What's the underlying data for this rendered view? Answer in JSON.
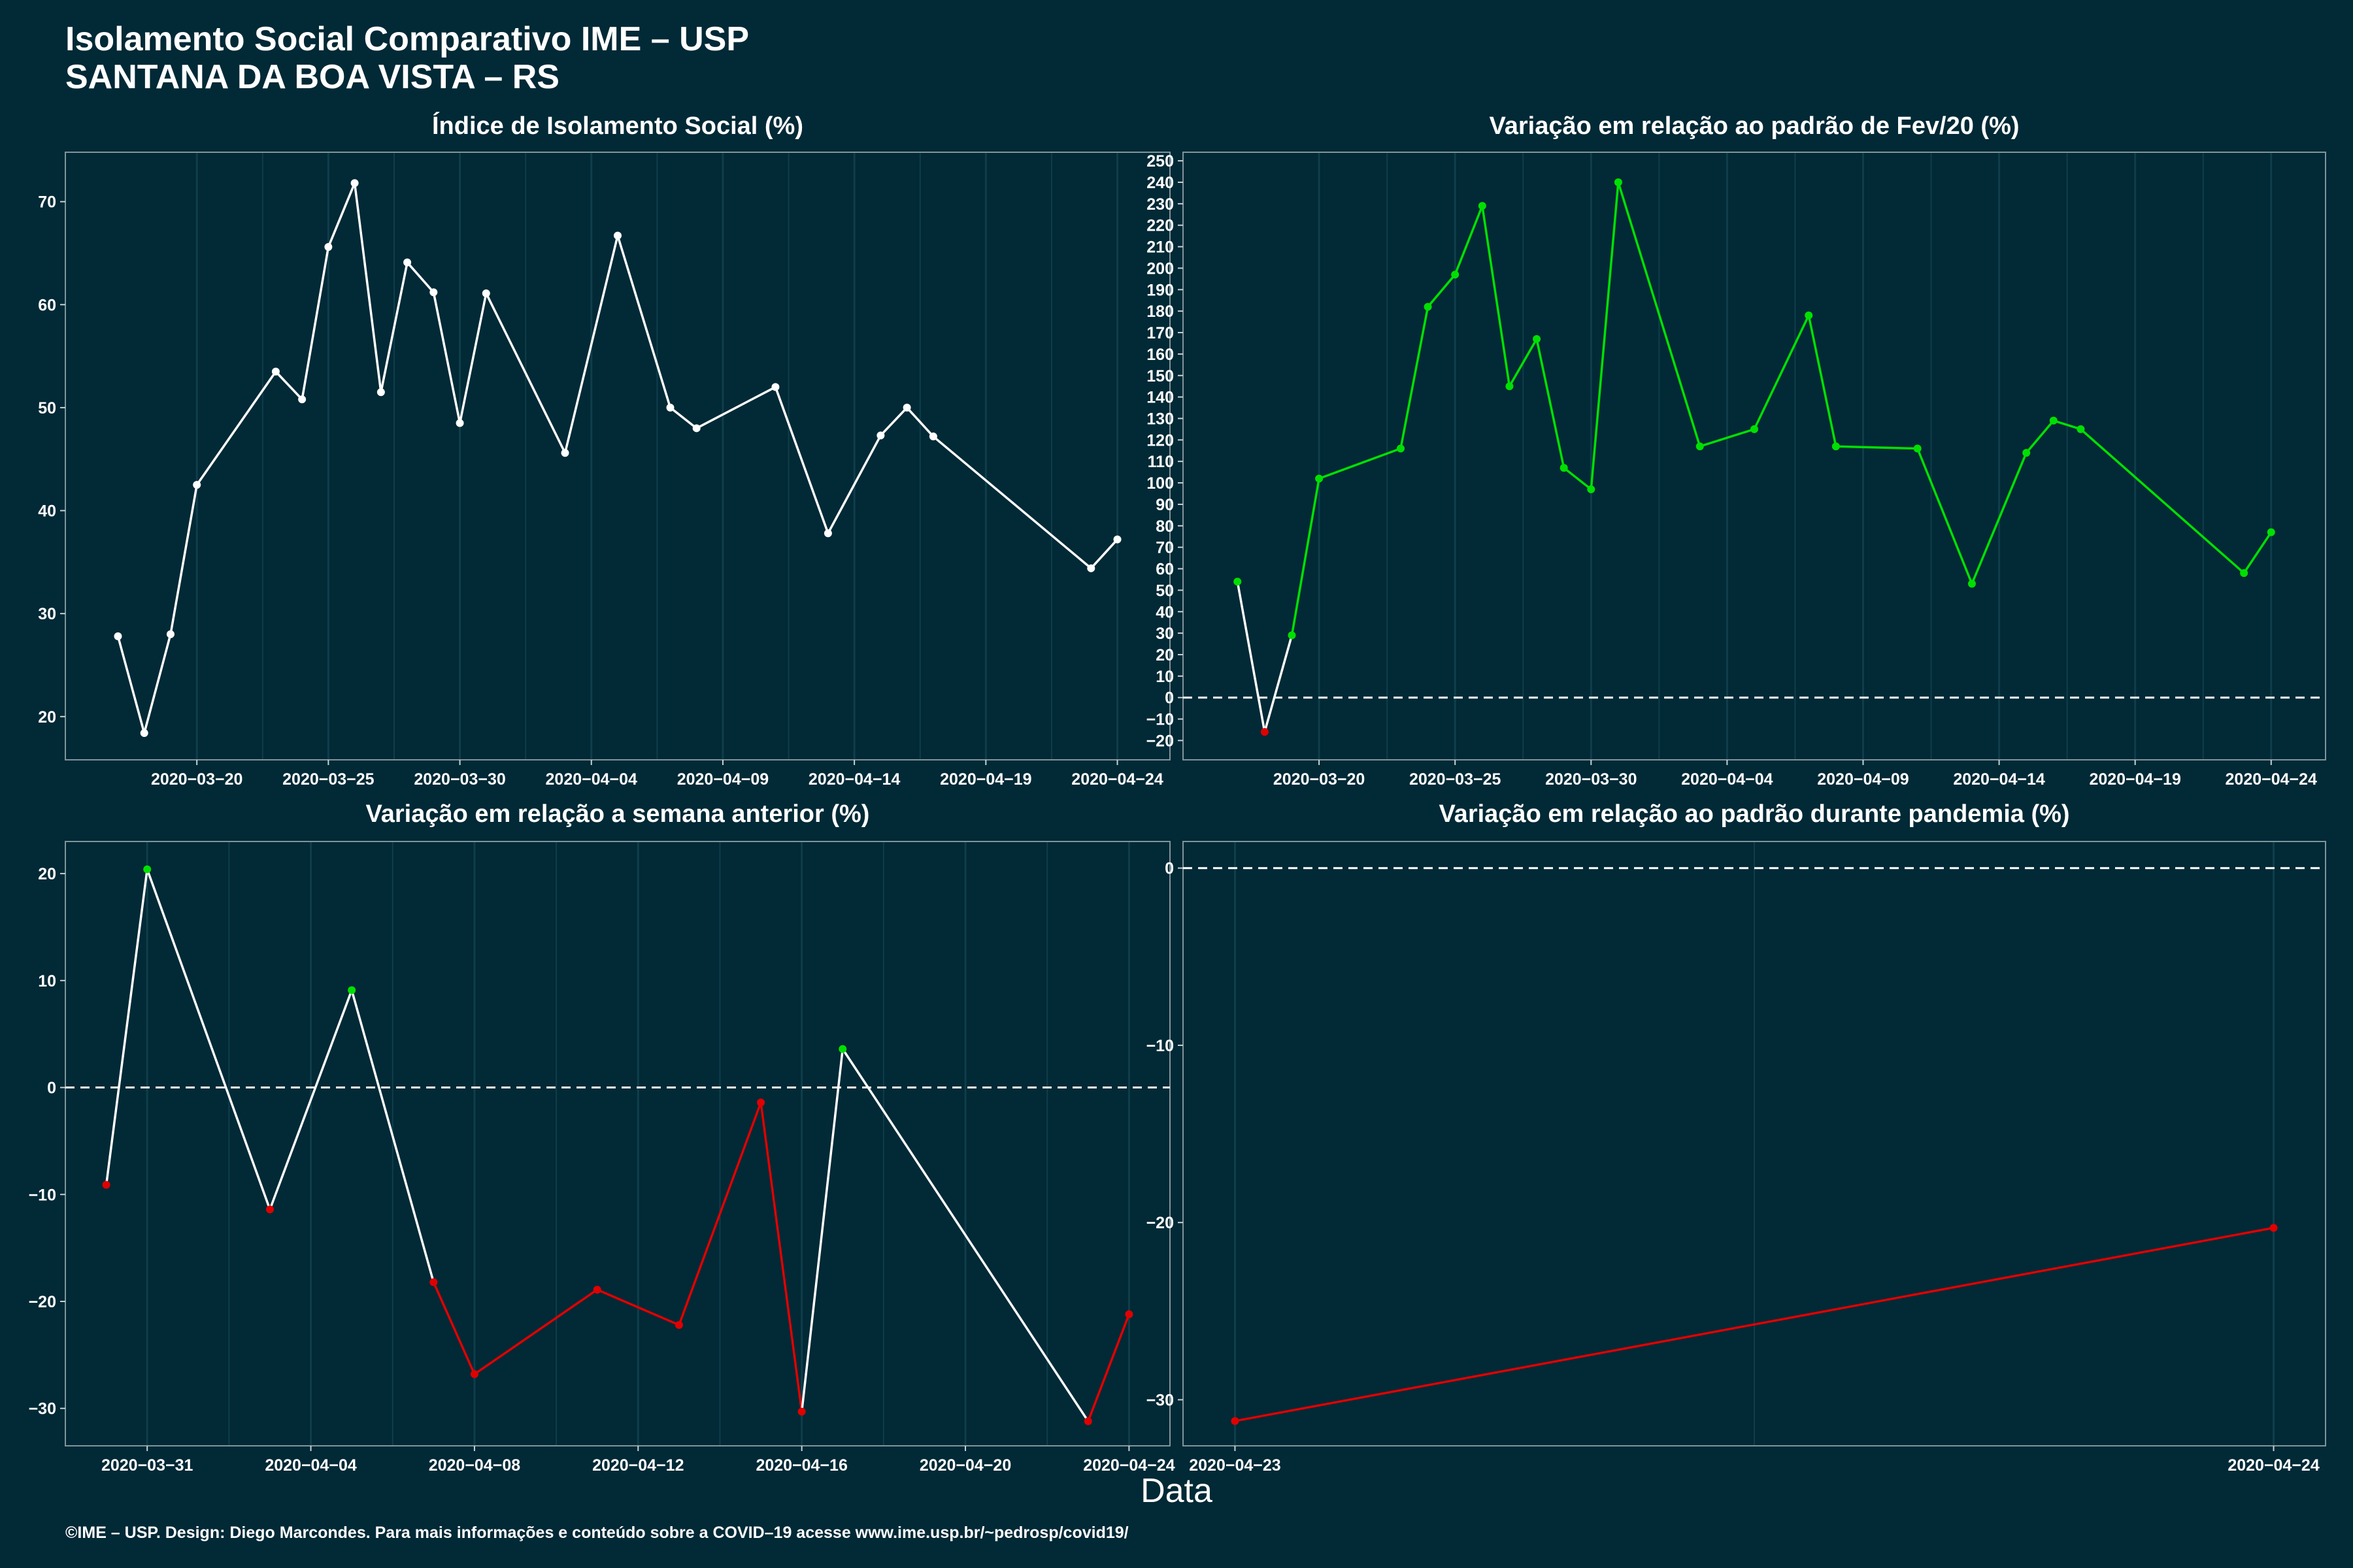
{
  "header": {
    "title": "Isolamento Social Comparativo IME – USP",
    "subtitle": "SANTANA DA BOA VISTA – RS"
  },
  "xlabel": "Data",
  "footer": "©IME – USP. Design: Diego Marcondes. Para mais informações e conteúdo sobre a COVID–19 acesse www.ime.usp.br/~pedrosp/covid19/",
  "colors": {
    "background": "#012936",
    "line": "#ffffff",
    "up": "#00e000",
    "down": "#e00000",
    "grid": "#0f3e4a"
  },
  "chart_data": [
    {
      "id": "isolamento",
      "type": "line",
      "title": "Índice de Isolamento Social (%)",
      "x_type": "date",
      "xlim": [
        "2020-03-15",
        "2020-04-26"
      ],
      "ylim": [
        15.8,
        74.8
      ],
      "x_ticks": [
        "2020-03-20",
        "2020-03-25",
        "2020-03-30",
        "2020-04-04",
        "2020-04-09",
        "2020-04-14",
        "2020-04-19",
        "2020-04-24"
      ],
      "y_ticks": [
        20,
        30,
        40,
        50,
        60,
        70
      ],
      "color_mode": "none",
      "series": [
        {
          "x": [
            "2020-03-17",
            "2020-03-18",
            "2020-03-19",
            "2020-03-20",
            "2020-03-23",
            "2020-03-24",
            "2020-03-25",
            "2020-03-26",
            "2020-03-27",
            "2020-03-28",
            "2020-03-29",
            "2020-03-30",
            "2020-03-31",
            "2020-04-03",
            "2020-04-05",
            "2020-04-07",
            "2020-04-08",
            "2020-04-11",
            "2020-04-13",
            "2020-04-15",
            "2020-04-16",
            "2020-04-17",
            "2020-04-23",
            "2020-04-24"
          ],
          "y": [
            27.8,
            18.4,
            28.0,
            42.5,
            53.5,
            50.8,
            65.6,
            71.8,
            51.5,
            64.1,
            61.2,
            48.5,
            61.1,
            45.6,
            66.7,
            50.0,
            48.0,
            52.0,
            37.8,
            47.3,
            50.0,
            47.2,
            34.4,
            37.2
          ]
        }
      ]
    },
    {
      "id": "var_fev",
      "type": "line",
      "title": "Variação em relação ao padrão de Fev/20 (%)",
      "x_type": "date",
      "xlim": [
        "2020-03-15",
        "2020-04-26"
      ],
      "ylim": [
        -29,
        254
      ],
      "x_ticks": [
        "2020-03-20",
        "2020-03-25",
        "2020-03-30",
        "2020-04-04",
        "2020-04-09",
        "2020-04-14",
        "2020-04-19",
        "2020-04-24"
      ],
      "y_ticks": [
        -20,
        -10,
        0,
        10,
        20,
        30,
        40,
        50,
        60,
        70,
        80,
        90,
        100,
        110,
        120,
        130,
        140,
        150,
        160,
        170,
        180,
        190,
        200,
        210,
        220,
        230,
        240,
        250
      ],
      "zero_line": true,
      "color_mode": "trend",
      "series": [
        {
          "x": [
            "2020-03-17",
            "2020-03-18",
            "2020-03-19",
            "2020-03-20",
            "2020-03-23",
            "2020-03-24",
            "2020-03-25",
            "2020-03-26",
            "2020-03-27",
            "2020-03-28",
            "2020-03-29",
            "2020-03-30",
            "2020-03-31",
            "2020-04-03",
            "2020-04-05",
            "2020-04-07",
            "2020-04-08",
            "2020-04-11",
            "2020-04-13",
            "2020-04-15",
            "2020-04-16",
            "2020-04-17",
            "2020-04-23",
            "2020-04-24"
          ],
          "y": [
            54,
            -16,
            29,
            102,
            116,
            182,
            197,
            229,
            145,
            167,
            107,
            97,
            240,
            117,
            125,
            178,
            117,
            116,
            53,
            114,
            129,
            125,
            58,
            77
          ],
          "point_colors": [
            "up",
            "down",
            "up",
            "up",
            "up",
            "up",
            "up",
            "up",
            "up",
            "up",
            "up",
            "up",
            "up",
            "up",
            "up",
            "up",
            "up",
            "up",
            "up",
            "up",
            "up",
            "up",
            "up",
            "up"
          ]
        }
      ]
    },
    {
      "id": "var_semana",
      "type": "line",
      "title": "Variação em relação a semana anterior (%)",
      "x_type": "date",
      "xlim": [
        "2020-03-29",
        "2020-04-25"
      ],
      "ylim": [
        -33.5,
        23
      ],
      "x_ticks": [
        "2020-03-31",
        "2020-04-04",
        "2020-04-08",
        "2020-04-12",
        "2020-04-16",
        "2020-04-20",
        "2020-04-24"
      ],
      "y_ticks": [
        -30,
        -20,
        -10,
        0,
        10,
        20
      ],
      "zero_line": true,
      "color_mode": "trend",
      "series": [
        {
          "x": [
            "2020-03-30",
            "2020-03-31",
            "2020-04-03",
            "2020-04-05",
            "2020-04-07",
            "2020-04-08",
            "2020-04-11",
            "2020-04-13",
            "2020-04-15",
            "2020-04-16",
            "2020-04-17",
            "2020-04-23",
            "2020-04-24"
          ],
          "y": [
            -9.1,
            20.4,
            -11.4,
            9.1,
            -18.2,
            -26.8,
            -18.9,
            -22.2,
            -1.4,
            -30.3,
            3.6,
            -31.2,
            -21.2
          ],
          "point_colors": [
            "down",
            "up",
            "down",
            "up",
            "down",
            "down",
            "down",
            "down",
            "down",
            "down",
            "up",
            "down",
            "down"
          ]
        }
      ]
    },
    {
      "id": "var_pandemia",
      "type": "line",
      "title": "Variação em relação ao padrão durante pandemia (%)",
      "x_type": "date",
      "xlim": [
        "2020-04-22.95",
        "2020-04-24.05"
      ],
      "ylim": [
        -32.6,
        1.5
      ],
      "x_ticks": [
        "2020-04-23",
        "2020-04-24"
      ],
      "y_ticks": [
        -30,
        -20,
        -10,
        0
      ],
      "zero_line": true,
      "color_mode": "trend",
      "series": [
        {
          "x": [
            "2020-04-23",
            "2020-04-24"
          ],
          "y": [
            -31.2,
            -20.3
          ],
          "point_colors": [
            "down",
            "down"
          ]
        }
      ]
    }
  ]
}
